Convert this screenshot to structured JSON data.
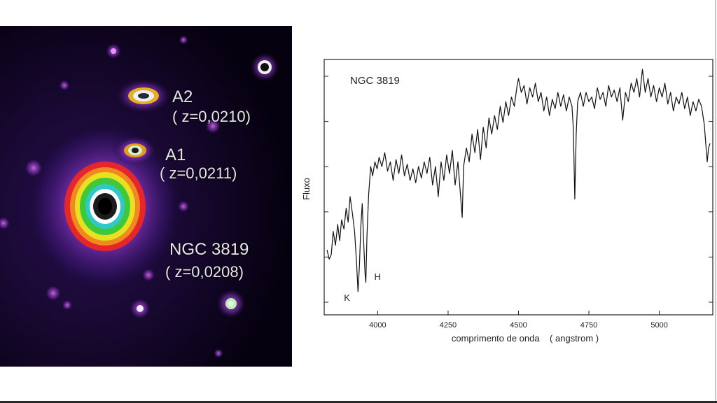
{
  "image_panel": {
    "labels": [
      {
        "name": "A2",
        "redshift": "( z=0,0210)"
      },
      {
        "name": "A1",
        "redshift": "( z=0,0211)"
      },
      {
        "name": "NGC 3819",
        "redshift": "( z=0,0208)"
      }
    ]
  },
  "chart_data": {
    "type": "line",
    "title": "NGC 3819",
    "xlabel": "comprimento de onda    ( angstrom )",
    "ylabel": "Fluxo",
    "xlim": [
      3810,
      5190
    ],
    "ylim": [
      0,
      1
    ],
    "x_ticks": [
      4000,
      4250,
      4500,
      4750,
      5000
    ],
    "x_tick_labels": [
      "4000",
      "4250",
      "4500",
      "4750",
      "5000"
    ],
    "y_tick_count": 6,
    "grid": false,
    "series": [
      {
        "color": "#111111",
        "x": [
          3820,
          3828,
          3835,
          3842,
          3850,
          3858,
          3865,
          3872,
          3880,
          3888,
          3895,
          3902,
          3910,
          3918,
          3925,
          3930,
          3935,
          3940,
          3945,
          3950,
          3955,
          3958,
          3962,
          3968,
          3975,
          3982,
          3990,
          3998,
          4005,
          4015,
          4025,
          4035,
          4045,
          4055,
          4065,
          4075,
          4085,
          4095,
          4105,
          4115,
          4125,
          4135,
          4145,
          4155,
          4165,
          4175,
          4185,
          4195,
          4205,
          4215,
          4225,
          4235,
          4245,
          4255,
          4265,
          4275,
          4285,
          4295,
          4300,
          4305,
          4315,
          4325,
          4335,
          4345,
          4355,
          4365,
          4375,
          4385,
          4395,
          4405,
          4415,
          4425,
          4435,
          4445,
          4455,
          4465,
          4475,
          4485,
          4495,
          4500,
          4510,
          4520,
          4530,
          4540,
          4550,
          4560,
          4570,
          4580,
          4590,
          4600,
          4610,
          4620,
          4630,
          4640,
          4650,
          4660,
          4670,
          4680,
          4690,
          4695,
          4700,
          4705,
          4710,
          4720,
          4730,
          4740,
          4750,
          4760,
          4770,
          4780,
          4790,
          4800,
          4810,
          4820,
          4830,
          4840,
          4850,
          4860,
          4870,
          4880,
          4890,
          4900,
          4910,
          4920,
          4930,
          4940,
          4950,
          4960,
          4970,
          4980,
          4990,
          5000,
          5010,
          5020,
          5030,
          5040,
          5050,
          5060,
          5070,
          5080,
          5090,
          5100,
          5110,
          5120,
          5130,
          5140,
          5150,
          5160,
          5170,
          5175,
          5180
        ],
        "y": [
          0.22,
          0.18,
          0.2,
          0.3,
          0.24,
          0.33,
          0.26,
          0.35,
          0.31,
          0.4,
          0.34,
          0.45,
          0.38,
          0.3,
          0.16,
          0.04,
          0.15,
          0.32,
          0.42,
          0.26,
          0.12,
          0.08,
          0.28,
          0.46,
          0.58,
          0.54,
          0.6,
          0.57,
          0.62,
          0.58,
          0.64,
          0.56,
          0.6,
          0.52,
          0.61,
          0.55,
          0.63,
          0.54,
          0.59,
          0.52,
          0.57,
          0.51,
          0.58,
          0.53,
          0.6,
          0.55,
          0.62,
          0.5,
          0.58,
          0.45,
          0.6,
          0.52,
          0.63,
          0.55,
          0.65,
          0.5,
          0.6,
          0.44,
          0.36,
          0.58,
          0.66,
          0.6,
          0.72,
          0.64,
          0.74,
          0.61,
          0.75,
          0.66,
          0.79,
          0.72,
          0.8,
          0.74,
          0.84,
          0.77,
          0.86,
          0.8,
          0.88,
          0.84,
          0.93,
          0.96,
          0.9,
          0.93,
          0.85,
          0.92,
          0.88,
          0.94,
          0.86,
          0.9,
          0.82,
          0.88,
          0.8,
          0.87,
          0.83,
          0.9,
          0.84,
          0.89,
          0.82,
          0.88,
          0.84,
          0.74,
          0.44,
          0.72,
          0.86,
          0.9,
          0.84,
          0.9,
          0.86,
          0.88,
          0.83,
          0.92,
          0.87,
          0.9,
          0.84,
          0.93,
          0.88,
          0.91,
          0.86,
          0.92,
          0.78,
          0.9,
          0.86,
          0.94,
          0.9,
          0.96,
          0.88,
          1.0,
          0.9,
          0.96,
          0.88,
          0.93,
          0.86,
          0.92,
          0.88,
          0.94,
          0.85,
          0.9,
          0.82,
          0.88,
          0.85,
          0.9,
          0.83,
          0.88,
          0.8,
          0.86,
          0.82,
          0.87,
          0.84,
          0.76,
          0.6,
          0.66,
          0.68
        ]
      }
    ],
    "annotations": [
      {
        "text": "K",
        "x": 3925,
        "y": 0.0
      },
      {
        "text": "H",
        "x": 3958,
        "y": 0.09
      }
    ]
  }
}
